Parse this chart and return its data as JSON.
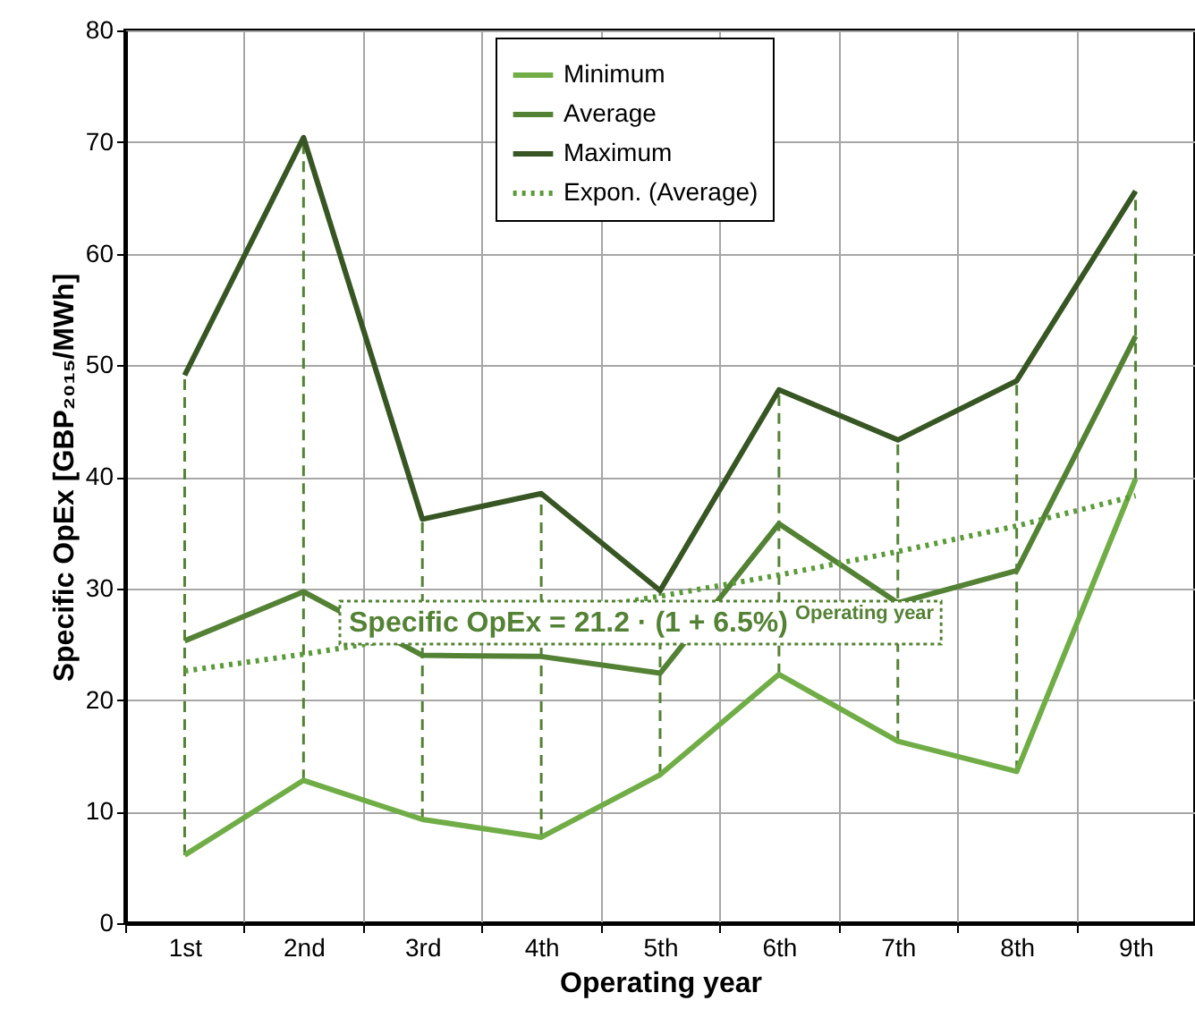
{
  "chart_data": {
    "type": "line",
    "xlabel": "Operating year",
    "ylabel": "Specific OpEx [GBP₂₀₁₅/MWh]",
    "categories": [
      "1st",
      "2nd",
      "3rd",
      "4th",
      "5th",
      "6th",
      "7th",
      "8th",
      "9th"
    ],
    "series": [
      {
        "name": "Minimum",
        "color": "#70ad47",
        "values": [
          6.1,
          12.8,
          9.3,
          7.7,
          13.3,
          22.3,
          16.3,
          13.6,
          39.8
        ]
      },
      {
        "name": "Average",
        "color": "#548235",
        "values": [
          25.3,
          29.7,
          24.0,
          23.9,
          22.4,
          35.8,
          28.7,
          31.6,
          52.6
        ],
        "errors": [
          [
            6.1,
            49.1
          ],
          [
            12.8,
            70.4
          ],
          [
            9.3,
            36.2
          ],
          [
            7.7,
            38.5
          ],
          [
            13.3,
            29.8
          ],
          [
            22.3,
            47.8
          ],
          [
            16.3,
            43.3
          ],
          [
            13.6,
            48.6
          ],
          [
            39.8,
            65.6
          ]
        ]
      },
      {
        "name": "Maximum",
        "color": "#375623",
        "values": [
          49.1,
          70.4,
          36.2,
          38.5,
          29.8,
          47.8,
          43.3,
          48.6,
          65.6
        ]
      },
      {
        "name": "Expon. (Average)",
        "color": "#5b9a3a",
        "line_style": "dotted",
        "values": [
          22.6,
          24.1,
          null,
          null,
          29.3,
          31.2,
          33.3,
          35.6,
          38.3
        ]
      }
    ],
    "ylim": [
      0,
      80
    ],
    "yticks": [
      0,
      10,
      20,
      30,
      40,
      50,
      60,
      70,
      80
    ],
    "grid": true,
    "legend": "top",
    "annotations": [
      "Specific OpEx = 21.2 · (1 + 6.5%)$^{Operating year}$"
    ]
  }
}
